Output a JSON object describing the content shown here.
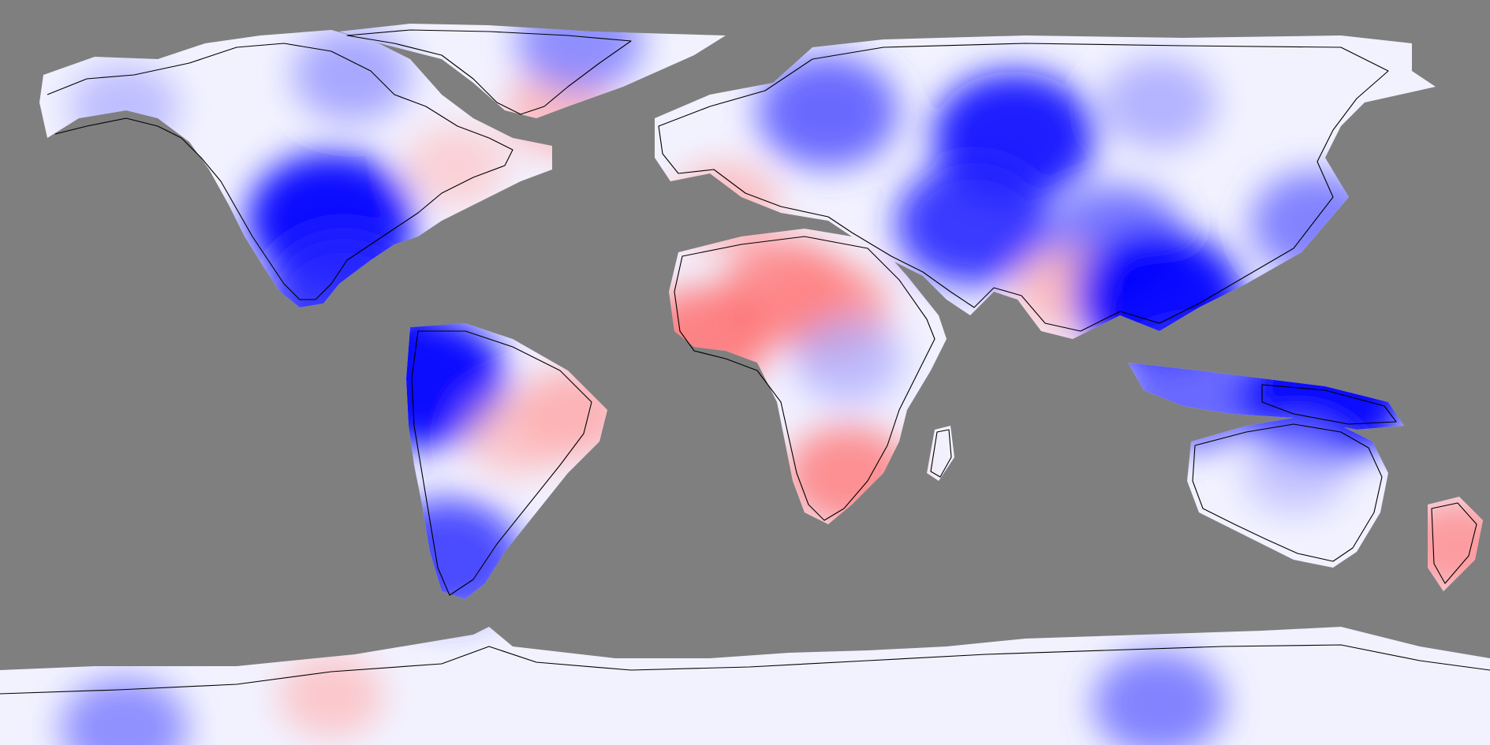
{
  "map": {
    "projection": "equirectangular",
    "lon_range": [
      -180,
      180
    ],
    "lat_range": [
      -90,
      90
    ],
    "background_color": "#7f7f7f",
    "coastline_color": "#000000",
    "colormap": {
      "type": "diverging",
      "negative_color": "#0000ff",
      "zero_color": "#ffffff",
      "positive_color": "#ff0000",
      "levels": 9
    },
    "anomaly_centers": [
      {
        "region": "central-us-plains",
        "lon": -100,
        "lat": 37,
        "anomaly": -1.0
      },
      {
        "region": "mexico-gulf-coast",
        "lon": -97,
        "lat": 19,
        "anomaly": -0.85
      },
      {
        "region": "alaska",
        "lon": -150,
        "lat": 64,
        "anomaly": -0.35
      },
      {
        "region": "canadian-arctic",
        "lon": -95,
        "lat": 72,
        "anomaly": -0.45
      },
      {
        "region": "eastern-canada",
        "lon": -70,
        "lat": 50,
        "anomaly": 0.25
      },
      {
        "region": "greenland-south",
        "lon": -45,
        "lat": 63,
        "anomaly": 0.35
      },
      {
        "region": "greenland-north",
        "lon": -40,
        "lat": 80,
        "anomaly": -0.55
      },
      {
        "region": "ecuador-colombia",
        "lon": -78,
        "lat": -2,
        "anomaly": -1.0
      },
      {
        "region": "eastern-brazil",
        "lon": -42,
        "lat": -10,
        "anomaly": 0.4
      },
      {
        "region": "central-brazil",
        "lon": -55,
        "lat": -15,
        "anomaly": 0.3
      },
      {
        "region": "patagonia",
        "lon": -72,
        "lat": -45,
        "anomaly": -0.8
      },
      {
        "region": "sahara",
        "lon": 10,
        "lat": 20,
        "anomaly": 0.55
      },
      {
        "region": "chad-sudan",
        "lon": 20,
        "lat": 15,
        "anomaly": 0.5
      },
      {
        "region": "central-africa",
        "lon": 25,
        "lat": 3,
        "anomaly": -0.35
      },
      {
        "region": "west-africa-coast",
        "lon": -10,
        "lat": 8,
        "anomaly": 0.6
      },
      {
        "region": "southern-africa",
        "lon": 25,
        "lat": -25,
        "anomaly": 0.55
      },
      {
        "region": "iberia",
        "lon": -5,
        "lat": 40,
        "anomaly": 0.35
      },
      {
        "region": "scandinavia",
        "lon": 20,
        "lat": 63,
        "anomaly": -0.7
      },
      {
        "region": "ural-western-siberia",
        "lon": 65,
        "lat": 57,
        "anomaly": -0.95
      },
      {
        "region": "central-siberia",
        "lon": 100,
        "lat": 65,
        "anomaly": -0.4
      },
      {
        "region": "caspian-iran",
        "lon": 55,
        "lat": 36,
        "anomaly": -0.85
      },
      {
        "region": "tibet",
        "lon": 90,
        "lat": 32,
        "anomaly": -0.65
      },
      {
        "region": "india",
        "lon": 78,
        "lat": 20,
        "anomaly": 0.35
      },
      {
        "region": "indochina",
        "lon": 100,
        "lat": 18,
        "anomaly": -1.0
      },
      {
        "region": "japan",
        "lon": 138,
        "lat": 36,
        "anomaly": -0.6
      },
      {
        "region": "sumatra-java",
        "lon": 108,
        "lat": -5,
        "anomaly": -0.7
      },
      {
        "region": "new-guinea",
        "lon": 140,
        "lat": -6,
        "anomaly": -1.0
      },
      {
        "region": "australia-interior",
        "lon": 133,
        "lat": -24,
        "anomaly": -0.3
      },
      {
        "region": "new-zealand",
        "lon": 172,
        "lat": -42,
        "anomaly": 0.5
      },
      {
        "region": "antarctica-west",
        "lon": -100,
        "lat": -78,
        "anomaly": 0.3
      },
      {
        "region": "antarctica-east",
        "lon": 100,
        "lat": -80,
        "anomaly": -0.6
      },
      {
        "region": "antarctica-south-edge",
        "lon": -150,
        "lat": -86,
        "anomaly": -0.55
      }
    ]
  }
}
